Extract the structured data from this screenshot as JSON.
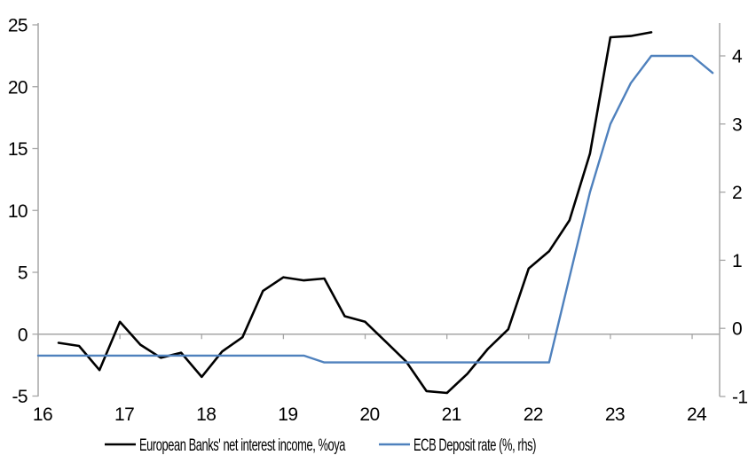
{
  "chart_data": {
    "type": "line",
    "title": "",
    "legend_position": "bottom",
    "grid": "zero-line-only",
    "colors": {
      "axis_gray": "#a6a6a6",
      "series_black": "#000000",
      "series_blue": "#4f81bd"
    },
    "x_axis": {
      "min": 16,
      "max": 24.35,
      "tick_values": [
        16,
        17,
        18,
        19,
        20,
        21,
        22,
        23,
        24
      ],
      "tick_labels": [
        "16",
        "17",
        "18",
        "19",
        "20",
        "21",
        "22",
        "23",
        "24"
      ]
    },
    "left_axis": {
      "range": [
        -5,
        25
      ],
      "tick_values": [
        -5,
        0,
        5,
        10,
        15,
        20,
        25
      ],
      "tick_labels": [
        "-5",
        "0",
        "5",
        "10",
        "15",
        "20",
        "25"
      ]
    },
    "right_axis": {
      "range": [
        -1,
        4.5
      ],
      "tick_values": [
        -1,
        0,
        1,
        2,
        3,
        4
      ],
      "tick_labels": [
        "-1",
        "0",
        "1",
        "2",
        "3",
        "4"
      ]
    },
    "series": [
      {
        "name": "European Banks' net interest income, %oya",
        "axis": "left",
        "color": "#000000",
        "x": [
          16.25,
          16.5,
          16.75,
          17.0,
          17.25,
          17.5,
          17.75,
          18.0,
          18.25,
          18.5,
          18.75,
          19.0,
          19.25,
          19.5,
          19.75,
          20.0,
          20.25,
          20.5,
          20.75,
          21.0,
          21.25,
          21.5,
          21.75,
          22.0,
          22.25,
          22.5,
          22.75,
          23.0,
          23.25,
          23.5
        ],
        "values": [
          -0.7,
          -0.95,
          -2.9,
          1.0,
          -0.85,
          -1.9,
          -1.5,
          -3.45,
          -1.4,
          -0.25,
          3.5,
          4.6,
          4.35,
          4.5,
          1.45,
          1.0,
          -0.6,
          -2.2,
          -4.6,
          -4.75,
          -3.2,
          -1.2,
          0.4,
          5.3,
          6.7,
          9.2,
          14.6,
          24.0,
          24.1,
          24.4
        ]
      },
      {
        "name": "ECB Deposit rate (%, rhs)",
        "axis": "right",
        "color": "#4f81bd",
        "x": [
          16.0,
          16.25,
          16.5,
          16.75,
          17.0,
          17.25,
          17.5,
          17.75,
          18.0,
          18.25,
          18.5,
          18.75,
          19.0,
          19.25,
          19.5,
          19.75,
          20.0,
          20.25,
          20.5,
          20.75,
          21.0,
          21.25,
          21.5,
          21.75,
          22.0,
          22.25,
          22.5,
          22.75,
          23.0,
          23.25,
          23.5,
          23.75,
          24.0,
          24.25
        ],
        "values": [
          -0.4,
          -0.4,
          -0.4,
          -0.4,
          -0.4,
          -0.4,
          -0.4,
          -0.4,
          -0.4,
          -0.4,
          -0.4,
          -0.4,
          -0.4,
          -0.4,
          -0.5,
          -0.5,
          -0.5,
          -0.5,
          -0.5,
          -0.5,
          -0.5,
          -0.5,
          -0.5,
          -0.5,
          -0.5,
          -0.5,
          0.75,
          2.0,
          3.0,
          3.6,
          4.0,
          4.0,
          4.0,
          3.75
        ]
      }
    ]
  }
}
